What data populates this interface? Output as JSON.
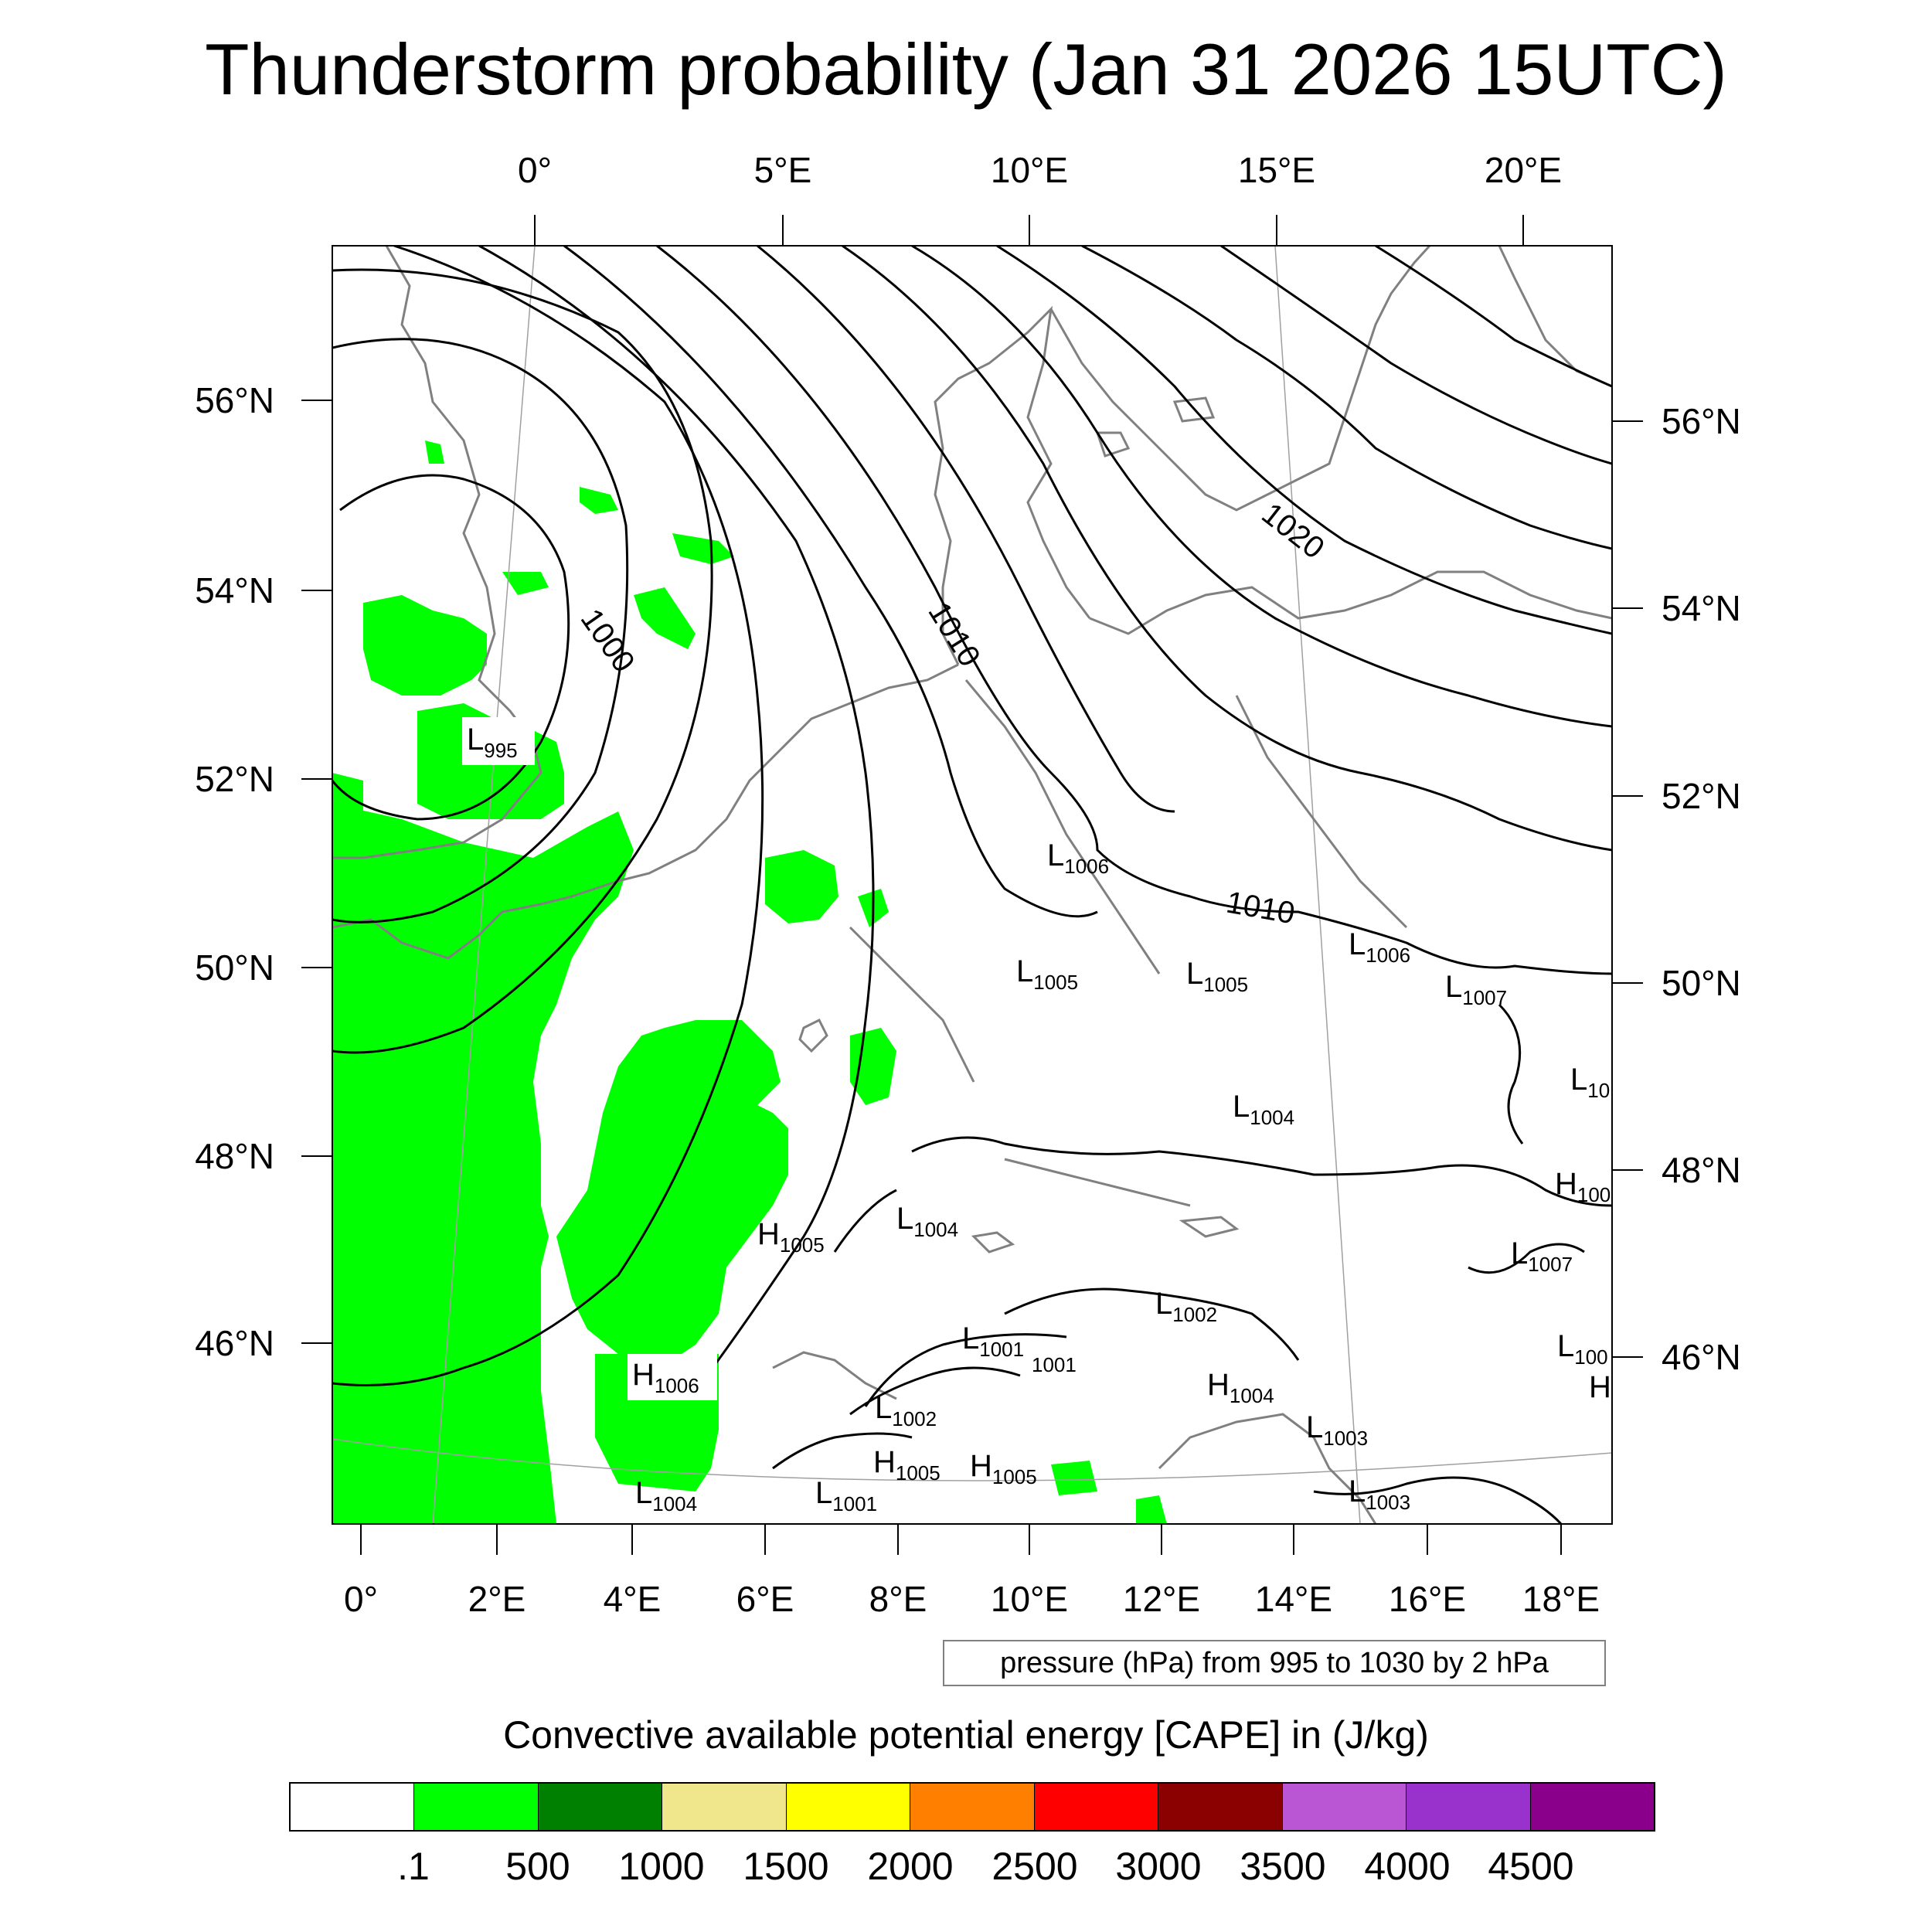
{
  "title": "Thunderstorm probability (Jan 31 2026 15UTC)",
  "map": {
    "top_lon_labels": [
      "0°",
      "5°E",
      "10°E",
      "15°E",
      "20°E"
    ],
    "bottom_lon_labels": [
      "0°",
      "2°E",
      "4°E",
      "6°E",
      "8°E",
      "10°E",
      "12°E",
      "14°E",
      "16°E",
      "18°E"
    ],
    "left_lat_labels": [
      "56°N",
      "54°N",
      "52°N",
      "50°N",
      "48°N",
      "46°N"
    ],
    "right_lat_labels": [
      "56°N",
      "54°N",
      "52°N",
      "50°N",
      "48°N",
      "46°N"
    ],
    "isobar_labels": [
      "1000",
      "1010",
      "1020",
      "1010"
    ],
    "centers": [
      {
        "letter": "L",
        "value": "995"
      },
      {
        "letter": "L",
        "value": "1006"
      },
      {
        "letter": "L",
        "value": "1006"
      },
      {
        "letter": "L",
        "value": "1005"
      },
      {
        "letter": "L",
        "value": "1005"
      },
      {
        "letter": "L",
        "value": "1007"
      },
      {
        "letter": "L",
        "value": "10"
      },
      {
        "letter": "L",
        "value": "1004"
      },
      {
        "letter": "H",
        "value": "100"
      },
      {
        "letter": "L",
        "value": "1004"
      },
      {
        "letter": "H",
        "value": "1005"
      },
      {
        "letter": "L",
        "value": "1007"
      },
      {
        "letter": "L",
        "value": "1002"
      },
      {
        "letter": "L",
        "value": "1001"
      },
      {
        "letter": "",
        "value": "1001"
      },
      {
        "letter": "L",
        "value": "100"
      },
      {
        "letter": "H",
        "value": "1006"
      },
      {
        "letter": "H",
        "value": "1004"
      },
      {
        "letter": "L",
        "value": "1002"
      },
      {
        "letter": "L",
        "value": "1003"
      },
      {
        "letter": "H",
        "value": ""
      },
      {
        "letter": "H",
        "value": "1005"
      },
      {
        "letter": "H",
        "value": "1005"
      },
      {
        "letter": "L",
        "value": "1004"
      },
      {
        "letter": "L",
        "value": "1001"
      },
      {
        "letter": "L",
        "value": "1003"
      }
    ],
    "colors": {
      "cape_fill": "#00ff00",
      "isobar": "#000000",
      "coastline": "#808080",
      "graticule": "#a0a0a0"
    }
  },
  "contour_info": "pressure (hPa) from 995 to 1030 by 2 hPa",
  "legend": {
    "title": "Convective available potential energy [CAPE] in (J/kg)",
    "colors": [
      "#ffffff",
      "#00ff00",
      "#008000",
      "#f0e68c",
      "#ffff00",
      "#ff8000",
      "#ff0000",
      "#8b0000",
      "#ba55d3",
      "#9932cc",
      "#8b008b"
    ],
    "labels": [
      ".1",
      "500",
      "1000",
      "1500",
      "2000",
      "2500",
      "3000",
      "3500",
      "4000",
      "4500"
    ]
  }
}
